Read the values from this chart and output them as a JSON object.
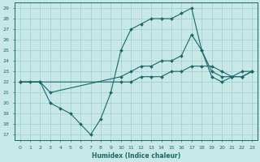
{
  "xlabel": "Humidex (Indice chaleur)",
  "bg_color": "#c8e8e8",
  "grid_color": "#9ecece",
  "line_color": "#1a6868",
  "xlim": [
    -0.5,
    23.5
  ],
  "ylim": [
    16.5,
    29.5
  ],
  "yticks": [
    17,
    18,
    19,
    20,
    21,
    22,
    23,
    24,
    25,
    26,
    27,
    28,
    29
  ],
  "xticks": [
    0,
    1,
    2,
    3,
    4,
    5,
    6,
    7,
    8,
    9,
    10,
    11,
    12,
    13,
    14,
    15,
    16,
    17,
    18,
    19,
    20,
    21,
    22,
    23
  ],
  "line1_x": [
    0,
    1,
    2,
    3,
    4,
    5,
    6,
    7,
    8,
    9,
    10,
    11,
    12,
    13,
    14,
    15,
    16,
    17,
    18,
    19,
    20,
    21,
    22,
    23
  ],
  "line1_y": [
    22,
    22,
    22,
    20,
    19.5,
    19,
    18,
    17,
    18.5,
    21,
    25,
    27,
    27.5,
    28,
    28,
    28,
    28.5,
    29,
    25,
    22.5,
    22,
    22.5,
    23,
    23
  ],
  "line2_x": [
    0,
    2,
    3,
    10,
    11,
    12,
    13,
    14,
    15,
    16,
    17,
    18,
    19,
    20,
    21,
    22,
    23
  ],
  "line2_y": [
    22,
    22,
    21,
    22.5,
    23,
    23.5,
    23.5,
    24,
    24,
    24.5,
    26.5,
    25,
    23,
    22.5,
    22.5,
    22.5,
    23
  ],
  "line3_x": [
    0,
    2,
    10,
    11,
    12,
    13,
    14,
    15,
    16,
    17,
    18,
    19,
    20,
    21,
    22,
    23
  ],
  "line3_y": [
    22,
    22,
    22,
    22,
    22.5,
    22.5,
    22.5,
    23,
    23,
    23.5,
    23.5,
    23.5,
    23,
    22.5,
    22.5,
    23
  ]
}
